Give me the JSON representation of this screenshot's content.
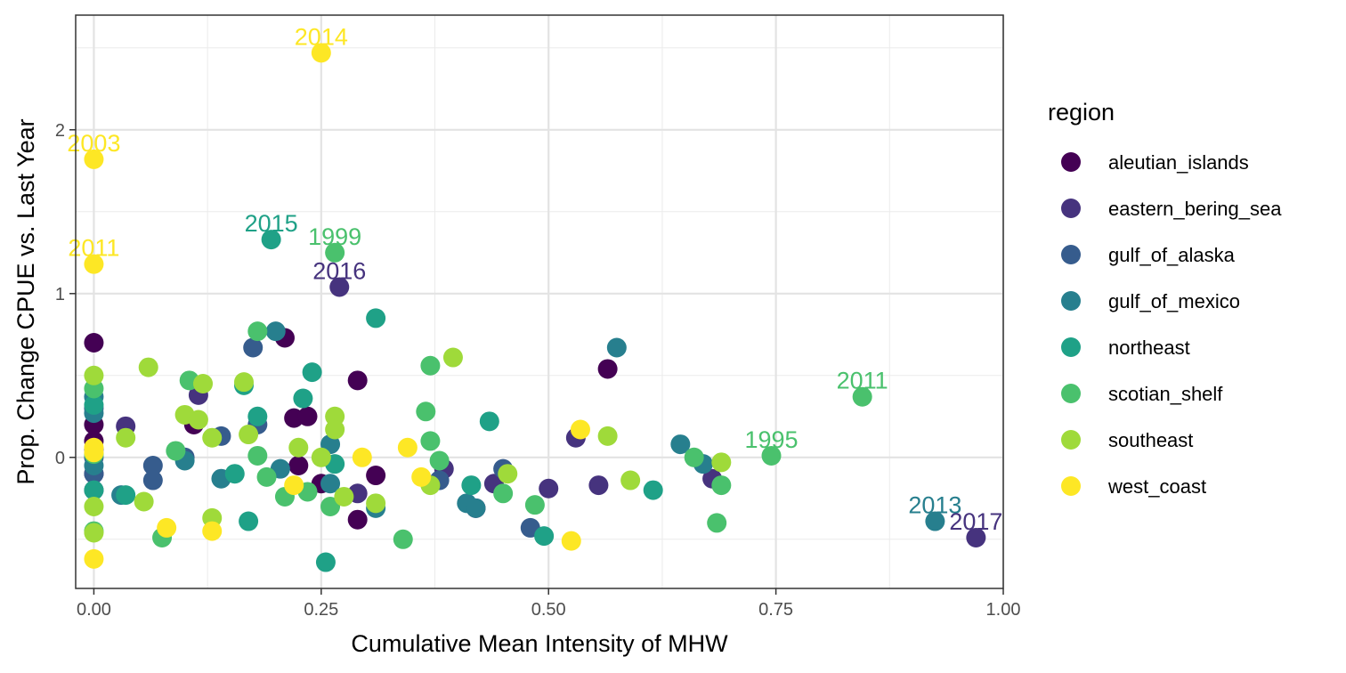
{
  "chart_data": {
    "type": "scatter",
    "title": "",
    "xlabel": "Cumulative Mean Intensity of MHW",
    "ylabel": "Prop. Change CPUE vs. Last Year",
    "xlim": [
      -0.02,
      1.0
    ],
    "ylim": [
      -0.8,
      2.7
    ],
    "x_ticks": [
      0.0,
      0.25,
      0.5,
      0.75,
      1.0
    ],
    "x_tick_labels": [
      "0.00",
      "0.25",
      "0.50",
      "0.75",
      "1.00"
    ],
    "y_ticks": [
      0,
      1,
      2
    ],
    "y_tick_labels": [
      "0",
      "1",
      "2"
    ],
    "grid": true,
    "legend": {
      "title": "region",
      "placement": "right",
      "entries": [
        {
          "name": "aleutian_islands",
          "color": "#440154"
        },
        {
          "name": "eastern_bering_sea",
          "color": "#46337E"
        },
        {
          "name": "gulf_of_alaska",
          "color": "#365C8D"
        },
        {
          "name": "gulf_of_mexico",
          "color": "#277F8E"
        },
        {
          "name": "northeast",
          "color": "#1FA187"
        },
        {
          "name": "scotian_shelf",
          "color": "#4AC16D"
        },
        {
          "name": "southeast",
          "color": "#9FDA3A"
        },
        {
          "name": "west_coast",
          "color": "#FDE725"
        }
      ]
    },
    "series": [
      {
        "name": "aleutian_islands",
        "points": [
          [
            0,
            0.7
          ],
          [
            0,
            0.2
          ],
          [
            0,
            0.1
          ],
          [
            0,
            -0.1
          ],
          [
            0.11,
            0.2
          ],
          [
            0.21,
            0.73
          ],
          [
            0.22,
            0.24
          ],
          [
            0.225,
            -0.05
          ],
          [
            0.235,
            0.25
          ],
          [
            0.25,
            -0.16
          ],
          [
            0.29,
            0.47
          ],
          [
            0.29,
            -0.38
          ],
          [
            0.31,
            -0.11
          ],
          [
            0.42,
            -0.31
          ],
          [
            0.565,
            0.54
          ]
        ]
      },
      {
        "name": "eastern_bering_sea",
        "points": [
          [
            0,
            0.05
          ],
          [
            0,
            -0.2
          ],
          [
            0.035,
            0.19
          ],
          [
            0.115,
            0.38
          ],
          [
            0.29,
            -0.22
          ],
          [
            0.27,
            1.04
          ],
          [
            0.385,
            -0.07
          ],
          [
            0.44,
            -0.16
          ],
          [
            0.5,
            -0.19
          ],
          [
            0.53,
            0.12
          ],
          [
            0.555,
            -0.17
          ],
          [
            0.68,
            -0.13
          ],
          [
            0.97,
            -0.49
          ]
        ]
      },
      {
        "name": "gulf_of_alaska",
        "points": [
          [
            0,
            0.3
          ],
          [
            0,
            0.0
          ],
          [
            0,
            -0.1
          ],
          [
            0.065,
            -0.05
          ],
          [
            0.065,
            -0.14
          ],
          [
            0.1,
            0.0
          ],
          [
            0.14,
            0.13
          ],
          [
            0.175,
            0.67
          ],
          [
            0.18,
            0.2
          ],
          [
            0.38,
            -0.14
          ],
          [
            0.45,
            -0.07
          ],
          [
            0.48,
            -0.43
          ]
        ]
      },
      {
        "name": "gulf_of_mexico",
        "points": [
          [
            0,
            0.37
          ],
          [
            0,
            0.27
          ],
          [
            0,
            -0.05
          ],
          [
            0.03,
            -0.23
          ],
          [
            0.1,
            -0.02
          ],
          [
            0.14,
            -0.13
          ],
          [
            0.2,
            0.77
          ],
          [
            0.205,
            -0.07
          ],
          [
            0.26,
            0.08
          ],
          [
            0.26,
            -0.16
          ],
          [
            0.31,
            -0.31
          ],
          [
            0.41,
            -0.28
          ],
          [
            0.42,
            -0.31
          ],
          [
            0.575,
            0.67
          ],
          [
            0.645,
            0.08
          ],
          [
            0.67,
            -0.04
          ],
          [
            0.925,
            -0.39
          ]
        ]
      },
      {
        "name": "northeast",
        "points": [
          [
            0,
            0.32
          ],
          [
            0,
            -0.2
          ],
          [
            0.035,
            -0.23
          ],
          [
            0.155,
            -0.1
          ],
          [
            0.165,
            0.44
          ],
          [
            0.17,
            -0.39
          ],
          [
            0.18,
            0.25
          ],
          [
            0.195,
            1.33
          ],
          [
            0.23,
            0.36
          ],
          [
            0.24,
            0.52
          ],
          [
            0.255,
            -0.64
          ],
          [
            0.265,
            -0.04
          ],
          [
            0.31,
            0.85
          ],
          [
            0.415,
            -0.17
          ],
          [
            0.435,
            0.22
          ],
          [
            0.495,
            -0.48
          ],
          [
            0.615,
            -0.2
          ]
        ]
      },
      {
        "name": "scotian_shelf",
        "points": [
          [
            0,
            0.42
          ],
          [
            0,
            0.02
          ],
          [
            0,
            -0.45
          ],
          [
            0.075,
            -0.49
          ],
          [
            0.09,
            0.04
          ],
          [
            0.105,
            0.47
          ],
          [
            0.18,
            0.01
          ],
          [
            0.18,
            0.77
          ],
          [
            0.19,
            -0.12
          ],
          [
            0.21,
            -0.24
          ],
          [
            0.235,
            -0.21
          ],
          [
            0.26,
            -0.3
          ],
          [
            0.265,
            1.25
          ],
          [
            0.34,
            -0.5
          ],
          [
            0.365,
            0.28
          ],
          [
            0.37,
            0.56
          ],
          [
            0.37,
            0.1
          ],
          [
            0.38,
            -0.02
          ],
          [
            0.45,
            -0.22
          ],
          [
            0.485,
            -0.29
          ],
          [
            0.66,
            0.0
          ],
          [
            0.685,
            -0.4
          ],
          [
            0.69,
            -0.17
          ],
          [
            0.745,
            0.01
          ],
          [
            0.845,
            0.37
          ]
        ]
      },
      {
        "name": "southeast",
        "points": [
          [
            0,
            0.5
          ],
          [
            0,
            -0.3
          ],
          [
            0,
            -0.46
          ],
          [
            0.035,
            0.12
          ],
          [
            0.055,
            -0.27
          ],
          [
            0.06,
            0.55
          ],
          [
            0.1,
            0.26
          ],
          [
            0.115,
            0.23
          ],
          [
            0.12,
            0.45
          ],
          [
            0.13,
            0.12
          ],
          [
            0.13,
            -0.37
          ],
          [
            0.165,
            0.46
          ],
          [
            0.17,
            0.14
          ],
          [
            0.225,
            0.06
          ],
          [
            0.25,
            0.0
          ],
          [
            0.265,
            0.25
          ],
          [
            0.265,
            0.17
          ],
          [
            0.275,
            -0.24
          ],
          [
            0.31,
            -0.28
          ],
          [
            0.37,
            -0.17
          ],
          [
            0.395,
            0.61
          ],
          [
            0.455,
            -0.1
          ],
          [
            0.565,
            0.13
          ],
          [
            0.59,
            -0.14
          ],
          [
            0.69,
            -0.03
          ]
        ]
      },
      {
        "name": "west_coast",
        "points": [
          [
            0,
            1.82
          ],
          [
            0,
            1.18
          ],
          [
            0,
            0.06
          ],
          [
            0,
            0.03
          ],
          [
            0,
            -0.62
          ],
          [
            0.08,
            -0.43
          ],
          [
            0.13,
            -0.45
          ],
          [
            0.22,
            -0.17
          ],
          [
            0.25,
            2.47
          ],
          [
            0.295,
            0.0
          ],
          [
            0.345,
            0.06
          ],
          [
            0.36,
            -0.12
          ],
          [
            0.535,
            0.17
          ],
          [
            0.525,
            -0.51
          ]
        ]
      }
    ],
    "annotations": [
      {
        "text": "2014",
        "x": 0.25,
        "y": 2.47,
        "series": "west_coast"
      },
      {
        "text": "2003",
        "x": 0.0,
        "y": 1.82,
        "series": "west_coast"
      },
      {
        "text": "2011",
        "x": 0.0,
        "y": 1.18,
        "series": "west_coast"
      },
      {
        "text": "2015",
        "x": 0.195,
        "y": 1.33,
        "series": "northeast"
      },
      {
        "text": "1999",
        "x": 0.265,
        "y": 1.25,
        "series": "scotian_shelf"
      },
      {
        "text": "2016",
        "x": 0.27,
        "y": 1.04,
        "series": "eastern_bering_sea"
      },
      {
        "text": "2011",
        "x": 0.845,
        "y": 0.37,
        "series": "scotian_shelf"
      },
      {
        "text": "1995",
        "x": 0.745,
        "y": 0.01,
        "series": "scotian_shelf"
      },
      {
        "text": "2013",
        "x": 0.925,
        "y": -0.39,
        "series": "gulf_of_mexico"
      },
      {
        "text": "2017",
        "x": 0.97,
        "y": -0.49,
        "series": "eastern_bering_sea"
      }
    ]
  }
}
